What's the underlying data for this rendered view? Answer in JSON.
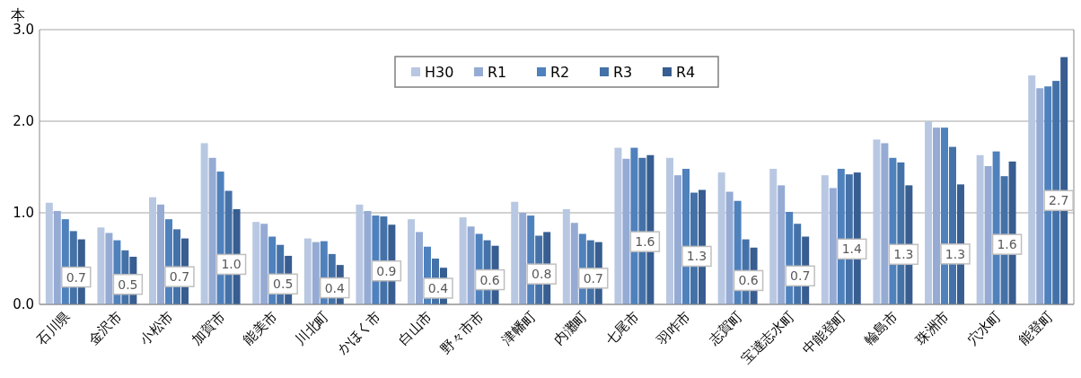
{
  "chart_data": {
    "type": "bar",
    "ylabel": "本",
    "categories": [
      "石川県",
      "金沢市",
      "小松市",
      "加賀市",
      "能美市",
      "川北町",
      "かほく市",
      "白山市",
      "野々市市",
      "津幡町",
      "内灘町",
      "七尾市",
      "羽咋市",
      "志賀町",
      "宝達志水町",
      "中能登町",
      "輪島市",
      "珠洲市",
      "穴水町",
      "能登町"
    ],
    "series": [
      {
        "name": "H30",
        "color": "#b9c8e2",
        "values": [
          1.11,
          0.84,
          1.17,
          1.76,
          0.9,
          0.72,
          1.09,
          0.93,
          0.95,
          1.12,
          1.04,
          1.71,
          1.6,
          1.44,
          1.48,
          1.41,
          1.8,
          2.0,
          1.63,
          2.5
        ]
      },
      {
        "name": "R1",
        "color": "#95abd4",
        "values": [
          1.02,
          0.78,
          1.09,
          1.6,
          0.88,
          0.68,
          1.02,
          0.79,
          0.85,
          1.0,
          0.89,
          1.59,
          1.41,
          1.23,
          1.3,
          1.27,
          1.76,
          1.93,
          1.51,
          2.36
        ]
      },
      {
        "name": "R2",
        "color": "#4f81bd",
        "values": [
          0.93,
          0.7,
          0.93,
          1.45,
          0.74,
          0.69,
          0.97,
          0.63,
          0.77,
          0.97,
          0.77,
          1.71,
          1.48,
          1.13,
          1.01,
          1.48,
          1.6,
          1.93,
          1.67,
          2.38
        ]
      },
      {
        "name": "R3",
        "color": "#4472a8",
        "values": [
          0.8,
          0.59,
          0.82,
          1.24,
          0.65,
          0.55,
          0.96,
          0.5,
          0.7,
          0.75,
          0.7,
          1.6,
          1.22,
          0.71,
          0.88,
          1.42,
          1.55,
          1.72,
          1.4,
          2.44
        ]
      },
      {
        "name": "R4",
        "color": "#375d91",
        "values": [
          0.71,
          0.52,
          0.72,
          1.04,
          0.53,
          0.43,
          0.87,
          0.4,
          0.64,
          0.79,
          0.68,
          1.63,
          1.25,
          0.62,
          0.74,
          1.44,
          1.3,
          1.31,
          1.56,
          2.7
        ],
        "value_labels": [
          "0.7",
          "0.5",
          "0.7",
          "1.0",
          "0.5",
          "0.4",
          "0.9",
          "0.4",
          "0.6",
          "0.8",
          "0.7",
          "1.6",
          "1.3",
          "0.6",
          "0.7",
          "1.4",
          "1.3",
          "1.3",
          "1.6",
          "2.7"
        ]
      }
    ],
    "ylim": [
      0,
      3
    ],
    "yticks": [
      {
        "value": 0,
        "label": "0.0"
      },
      {
        "value": 1,
        "label": "1.0"
      },
      {
        "value": 2,
        "label": "2.0"
      },
      {
        "value": 3,
        "label": "3.0"
      }
    ],
    "grid": "y",
    "legend": "top"
  }
}
